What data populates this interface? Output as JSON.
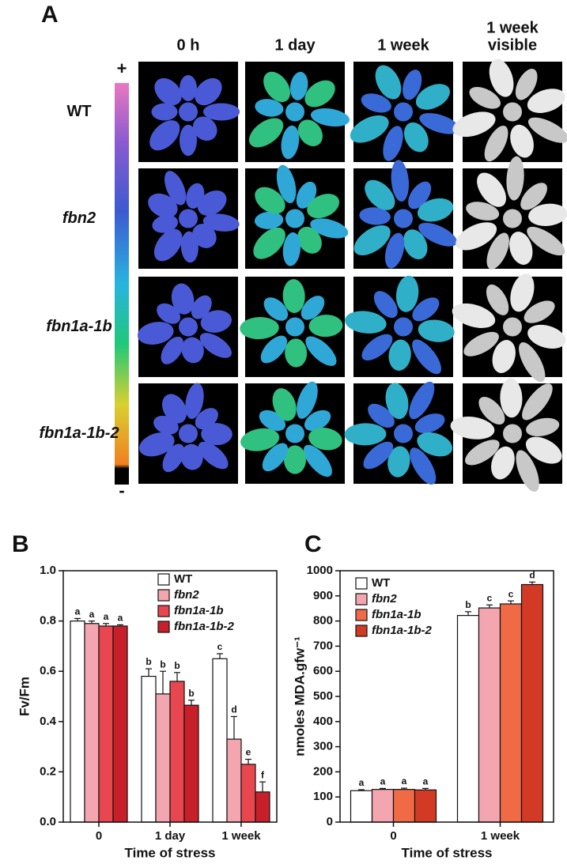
{
  "panel_a": {
    "panel_label": "A",
    "columns": [
      [
        "0 h"
      ],
      [
        "1 day"
      ],
      [
        "1 week"
      ],
      [
        "1 week",
        "visible"
      ]
    ],
    "rows": [
      {
        "label": "WT",
        "italic": false
      },
      {
        "label": "fbn2",
        "italic": true
      },
      {
        "label": "fbn1a-1b",
        "italic": true
      },
      {
        "label": "fbn1a-1b-2",
        "italic": true
      }
    ],
    "scale_top": "+",
    "scale_bottom": "-"
  },
  "chart_data": [
    {
      "type": "bar",
      "panel_label": "B",
      "ylabel": "Fv/Fm",
      "xlabel": "Time of stress",
      "categories": [
        "0",
        "1 day",
        "1 week"
      ],
      "series": [
        {
          "name": "WT",
          "italic": false,
          "color": "#ffffff",
          "values": [
            0.8,
            0.58,
            0.65
          ],
          "errors": [
            0.01,
            0.03,
            0.02
          ],
          "letters": [
            "a",
            "b",
            "c"
          ]
        },
        {
          "name": "fbn2",
          "italic": true,
          "color": "#f4a6b0",
          "values": [
            0.79,
            0.51,
            0.33
          ],
          "errors": [
            0.01,
            0.09,
            0.09
          ],
          "letters": [
            "a",
            "b",
            "d"
          ]
        },
        {
          "name": "fbn1a-1b",
          "italic": true,
          "color": "#e8474f",
          "values": [
            0.78,
            0.56,
            0.23
          ],
          "errors": [
            0.01,
            0.035,
            0.02
          ],
          "letters": [
            "a",
            "b",
            "e"
          ]
        },
        {
          "name": "fbn1a-1b-2",
          "italic": true,
          "color": "#c8202a",
          "values": [
            0.78,
            0.465,
            0.12
          ],
          "errors": [
            0.005,
            0.02,
            0.04
          ],
          "letters": [
            "a",
            "b",
            "f"
          ]
        }
      ],
      "ylim": [
        0,
        1
      ],
      "yticks": [
        {
          "value": 0,
          "label": "0.0"
        },
        0.2,
        0.4,
        0.6,
        0.8,
        {
          "value": 1,
          "label": "1.0"
        }
      ],
      "legend": "upper right"
    },
    {
      "type": "bar",
      "panel_label": "C",
      "ylabel": "nmoles MDA.gfw⁻¹",
      "xlabel": "Time of stress",
      "categories": [
        "0",
        "1 week"
      ],
      "series": [
        {
          "name": "WT",
          "italic": false,
          "color": "#ffffff",
          "values": [
            125,
            822
          ],
          "errors": [
            4,
            15
          ],
          "letters": [
            "a",
            "b"
          ]
        },
        {
          "name": "fbn2",
          "italic": true,
          "color": "#f4a6b0",
          "values": [
            130,
            852
          ],
          "errors": [
            4,
            12
          ],
          "letters": [
            "a",
            "c"
          ]
        },
        {
          "name": "fbn1a-1b",
          "italic": true,
          "color": "#f06a45",
          "values": [
            130,
            868
          ],
          "errors": [
            5,
            12
          ],
          "letters": [
            "a",
            "c"
          ]
        },
        {
          "name": "fbn1a-1b-2",
          "italic": true,
          "color": "#d23a25",
          "values": [
            128,
            945
          ],
          "errors": [
            6,
            10
          ],
          "letters": [
            "a",
            "d"
          ]
        }
      ],
      "ylim": [
        0,
        1000
      ],
      "yticks": [
        0,
        100,
        200,
        300,
        400,
        500,
        600,
        700,
        800,
        900,
        1000
      ],
      "legend": "upper left"
    }
  ]
}
